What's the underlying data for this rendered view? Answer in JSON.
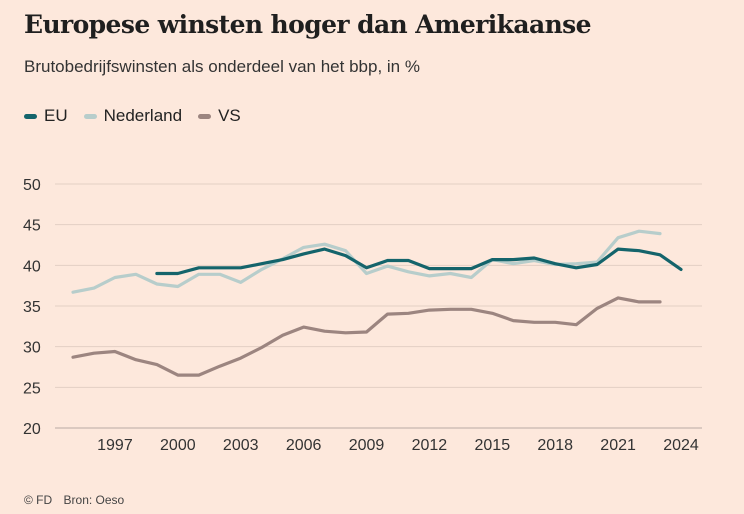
{
  "header": {
    "title": "Europese winsten hoger dan Amerikaanse",
    "subtitle": "Brutobedrijfswinsten als onderdeel van het bbp, in %"
  },
  "footer": {
    "copyright": "© FD",
    "source": "Bron: Oeso"
  },
  "chart_data": {
    "type": "line",
    "title": "Europese winsten hoger dan Amerikaanse",
    "subtitle": "Brutobedrijfswinsten als onderdeel van het bbp, in %",
    "xlabel": "",
    "ylabel": "",
    "xlim": [
      1995,
      2024
    ],
    "ylim": [
      20,
      50
    ],
    "yticks": [
      20,
      25,
      30,
      35,
      40,
      45,
      50
    ],
    "xticks": [
      1997,
      2000,
      2003,
      2006,
      2009,
      2012,
      2015,
      2018,
      2021,
      2024
    ],
    "grid": true,
    "legend_position": "top-left",
    "series": [
      {
        "name": "EU",
        "color": "#14646b",
        "x": [
          1999,
          2000,
          2001,
          2002,
          2003,
          2004,
          2005,
          2006,
          2007,
          2008,
          2009,
          2010,
          2011,
          2012,
          2013,
          2014,
          2015,
          2016,
          2017,
          2018,
          2019,
          2020,
          2021,
          2022,
          2023,
          2024
        ],
        "y": [
          39.0,
          39.0,
          39.7,
          39.7,
          39.7,
          40.2,
          40.7,
          41.4,
          42.0,
          41.2,
          39.7,
          40.6,
          40.6,
          39.6,
          39.6,
          39.6,
          40.7,
          40.7,
          40.9,
          40.2,
          39.7,
          40.1,
          42.0,
          41.8,
          41.3,
          39.5
        ]
      },
      {
        "name": "Nederland",
        "color": "#b7cdcb",
        "x": [
          1995,
          1996,
          1997,
          1998,
          1999,
          2000,
          2001,
          2002,
          2003,
          2004,
          2005,
          2006,
          2007,
          2008,
          2009,
          2010,
          2011,
          2012,
          2013,
          2014,
          2015,
          2016,
          2017,
          2018,
          2019,
          2020,
          2021,
          2022,
          2023
        ],
        "y": [
          36.7,
          37.2,
          38.5,
          38.9,
          37.7,
          37.4,
          38.9,
          38.9,
          37.9,
          39.5,
          40.8,
          42.2,
          42.6,
          41.8,
          39.0,
          39.9,
          39.2,
          38.7,
          39.0,
          38.5,
          40.7,
          40.2,
          40.6,
          40.1,
          40.2,
          40.4,
          43.4,
          44.2,
          43.9
        ]
      },
      {
        "name": "VS",
        "color": "#9c8580",
        "x": [
          1995,
          1996,
          1997,
          1998,
          1999,
          2000,
          2001,
          2002,
          2003,
          2004,
          2005,
          2006,
          2007,
          2008,
          2009,
          2010,
          2011,
          2012,
          2013,
          2014,
          2015,
          2016,
          2017,
          2018,
          2019,
          2020,
          2021,
          2022,
          2023
        ],
        "y": [
          28.7,
          29.2,
          29.4,
          28.4,
          27.8,
          26.5,
          26.5,
          27.6,
          28.6,
          29.9,
          31.4,
          32.4,
          31.9,
          31.7,
          31.8,
          34.0,
          34.1,
          34.5,
          34.6,
          34.6,
          34.1,
          33.2,
          33.0,
          33.0,
          32.7,
          34.7,
          36.0,
          35.5,
          35.5
        ]
      }
    ]
  }
}
